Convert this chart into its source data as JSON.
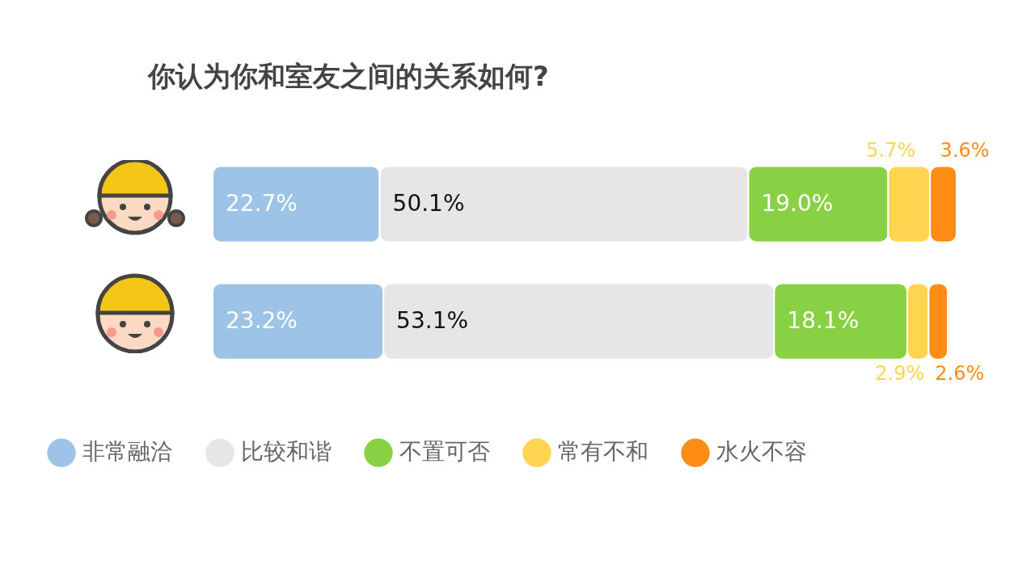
{
  "chart_data": {
    "type": "bar",
    "orientation": "horizontal",
    "stacked": true,
    "title": "你认为你和室友之间的关系如何?",
    "categories": [
      null,
      null
    ],
    "legend": "bottom",
    "series": [
      {
        "name": "非常融洽",
        "color": "#9dc3e6",
        "values": [
          22.7,
          23.2
        ],
        "value_labels": [
          "22.7%",
          "23.2%"
        ]
      },
      {
        "name": "比较和谐",
        "color": "#e6e6e6",
        "values": [
          50.1,
          53.1
        ],
        "value_labels": [
          "50.1%",
          "53.1%"
        ]
      },
      {
        "name": "不置可否",
        "color": "#88d044",
        "values": [
          19.0,
          18.1
        ],
        "value_labels": [
          "19.0%",
          "18.1%"
        ]
      },
      {
        "name": "常有不和",
        "color": "#ffd54f",
        "values": [
          5.7,
          2.9
        ],
        "value_labels": [
          "5.7%",
          "2.9%"
        ]
      },
      {
        "name": "水火不容",
        "color": "#ff8c14",
        "values": [
          3.6,
          2.6
        ],
        "value_labels": [
          "3.6%",
          "2.6%"
        ]
      }
    ]
  }
}
